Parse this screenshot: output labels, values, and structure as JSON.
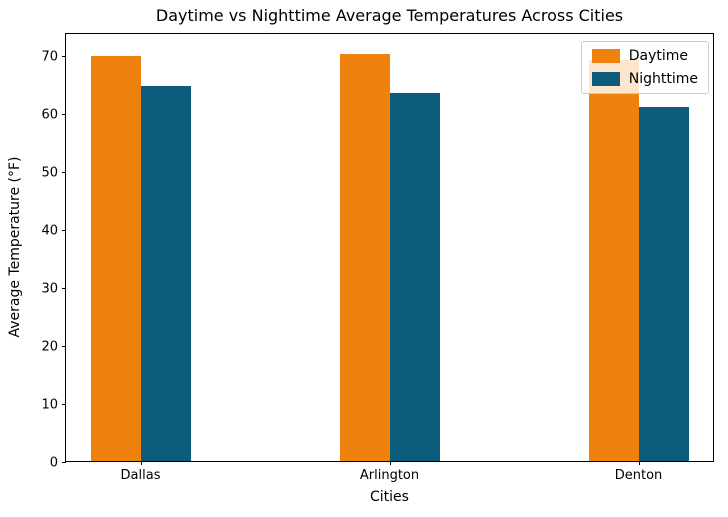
{
  "chart_data": {
    "type": "bar",
    "title": "Daytime vs Nighttime Average Temperatures Across Cities",
    "xlabel": "Cities",
    "ylabel": "Average Temperature (°F)",
    "categories": [
      "Dallas",
      "Arlington",
      "Denton"
    ],
    "series": [
      {
        "name": "Daytime",
        "color": "#ee820d",
        "values": [
          69.8,
          70.2,
          69.2
        ]
      },
      {
        "name": "Nighttime",
        "color": "#0d5c7c",
        "values": [
          64.7,
          63.5,
          61.1
        ]
      }
    ],
    "yticks": [
      0,
      10,
      20,
      30,
      40,
      50,
      60,
      70
    ],
    "ylim": [
      0,
      74
    ],
    "grid": false,
    "legend_position": "upper right",
    "background_color": "#ffffff",
    "spine_color": "#000000"
  }
}
